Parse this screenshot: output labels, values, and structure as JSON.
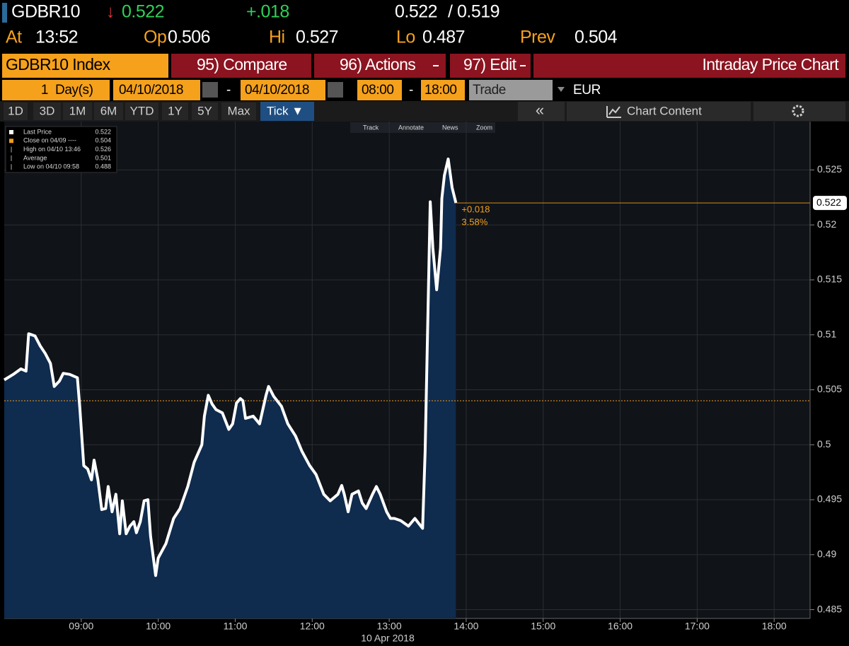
{
  "header": {
    "symbol": "GDBR10",
    "direction": "↓",
    "last": "0.522",
    "change": "+.018",
    "bid": "0.522",
    "separator": "/",
    "ask": "0.519",
    "fields": [
      {
        "label": "At",
        "value": "13:52"
      },
      {
        "label": "Op",
        "value": "0.506"
      },
      {
        "label": "Hi",
        "value": "0.527"
      },
      {
        "label": "Lo",
        "value": "0.487"
      },
      {
        "label": "Prev",
        "value": "0.504"
      }
    ]
  },
  "toolbar": {
    "security": "GDBR10 Index",
    "compare": "95) Compare",
    "actions": "96) Actions",
    "edit": "97) Edit",
    "function_title": "Intraday Price Chart",
    "period_count": "1",
    "period_unit": "Day(s)",
    "start_date": "04/10/2018",
    "date_separator": "-",
    "end_date": "04/10/2018",
    "time_separator": "-",
    "start_time": "08:00",
    "end_time": "18:00",
    "event": "Trade",
    "currency": "EUR",
    "ranges": [
      "1D",
      "3D",
      "1M",
      "6M",
      "YTD",
      "1Y",
      "5Y",
      "Max"
    ],
    "selected_range": "Tick ▼",
    "collapse": "«",
    "chart_content": "Chart Content"
  },
  "chart_toolbar": [
    "Track",
    "Annotate",
    "News",
    "Zoom"
  ],
  "chart_data": {
    "type": "line",
    "x": [
      "08:00",
      "08:07",
      "08:13",
      "08:17",
      "08:19",
      "08:24",
      "08:28",
      "08:32",
      "08:36",
      "08:39",
      "08:43",
      "08:46",
      "08:51",
      "08:57",
      "08:59",
      "09:02",
      "09:05",
      "09:08",
      "09:10",
      "09:13",
      "09:16",
      "09:19",
      "09:21",
      "09:24",
      "09:27",
      "09:30",
      "09:32",
      "09:35",
      "09:38",
      "09:41",
      "09:43",
      "09:46",
      "09:49",
      "09:52",
      "09:54",
      "09:58",
      "10:00",
      "10:06",
      "10:12",
      "10:17",
      "10:23",
      "10:28",
      "10:34",
      "10:36",
      "10:39",
      "10:42",
      "10:45",
      "10:50",
      "10:55",
      "10:58",
      "11:01",
      "11:04",
      "11:06",
      "11:08",
      "11:14",
      "11:19",
      "11:24",
      "11:26",
      "11:30",
      "11:36",
      "11:41",
      "11:47",
      "11:52",
      "11:58",
      "12:03",
      "12:09",
      "12:14",
      "12:20",
      "12:23",
      "12:25",
      "12:28",
      "12:31",
      "12:36",
      "12:39",
      "12:42",
      "12:47",
      "12:50",
      "12:53",
      "12:58",
      "13:01",
      "13:04",
      "13:09",
      "13:15",
      "13:20",
      "13:26",
      "13:28",
      "13:32",
      "13:34",
      "13:37",
      "13:40",
      "13:41",
      "13:43",
      "13:46",
      "13:49",
      "13:52"
    ],
    "series": [
      {
        "name": "Last Price",
        "color": "#ffffff",
        "area_color": "#0f2b4d",
        "values": [
          0.5059,
          0.5064,
          0.5069,
          0.5067,
          0.5101,
          0.5099,
          0.509,
          0.5083,
          0.5074,
          0.5053,
          0.5058,
          0.5065,
          0.5064,
          0.5061,
          0.5032,
          0.4981,
          0.4978,
          0.4968,
          0.4986,
          0.4968,
          0.4941,
          0.4942,
          0.4962,
          0.4939,
          0.4955,
          0.4919,
          0.4949,
          0.4919,
          0.4926,
          0.493,
          0.492,
          0.493,
          0.4949,
          0.495,
          0.4917,
          0.4881,
          0.4897,
          0.491,
          0.4933,
          0.4942,
          0.4962,
          0.4984,
          0.5,
          0.5026,
          0.5045,
          0.5037,
          0.5032,
          0.5029,
          0.5014,
          0.5019,
          0.5038,
          0.5042,
          0.504,
          0.5024,
          0.5026,
          0.5019,
          0.5045,
          0.5053,
          0.5044,
          0.5035,
          0.5019,
          0.5008,
          0.4994,
          0.4981,
          0.4973,
          0.4955,
          0.4949,
          0.4955,
          0.4963,
          0.4955,
          0.4939,
          0.4955,
          0.4958,
          0.4947,
          0.4942,
          0.4955,
          0.4962,
          0.4955,
          0.4939,
          0.4933,
          0.4933,
          0.4931,
          0.4926,
          0.4933,
          0.4924,
          0.4994,
          0.5221,
          0.5179,
          0.5141,
          0.5179,
          0.5224,
          0.5245,
          0.526,
          0.5234,
          0.522
        ]
      }
    ],
    "legend": [
      {
        "label": "Last Price",
        "value": 0.522,
        "color": "#ffffff"
      },
      {
        "label": "Close on 04/09 ----",
        "value": 0.504,
        "color": "#f39c1f"
      },
      {
        "label": "High on 04/10 13:46",
        "value": 0.526
      },
      {
        "label": "Average",
        "value": 0.501
      },
      {
        "label": "Low on 04/10 09:58",
        "value": 0.488
      }
    ],
    "annotations": [
      "+0.018",
      "3.58%"
    ],
    "xlim": [
      "08:00",
      "18:28"
    ],
    "xticks": [
      "09:00",
      "10:00",
      "11:00",
      "12:00",
      "13:00",
      "14:00",
      "15:00",
      "16:00",
      "17:00",
      "18:00"
    ],
    "xlabel": "10 Apr 2018",
    "ylim": [
      0.4842,
      0.5294
    ],
    "yticks": [
      0.485,
      0.49,
      0.495,
      0.5,
      0.505,
      0.51,
      0.515,
      0.52,
      0.525
    ],
    "grid": true
  }
}
